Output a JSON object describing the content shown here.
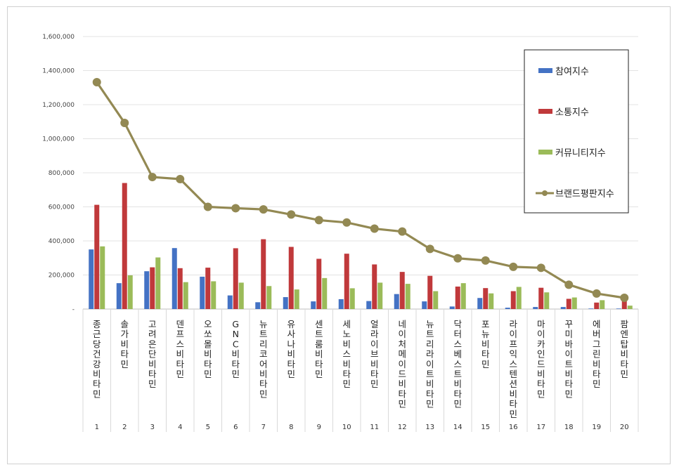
{
  "chart_data": {
    "type": "bar",
    "categories": [
      "종근당건강 비타민",
      "솔가 비타민",
      "고려은단 비타민",
      "덴프스 비타민",
      "오쏘몰 비타민",
      "GNC 비타민",
      "뉴트리코어 비타민",
      "유사나 비타민",
      "센트룸 비타민",
      "세노비스 비타민",
      "얼라이브 비타민",
      "네이처메이드 비타민",
      "뉴트리라이트 비타민",
      "닥터스베스트 비타민",
      "포뉴 비타민",
      "라이프익스텐션 비타민",
      "마이카인드 비타민",
      "꾸미바이트 비타민",
      "에버그린 비타민",
      "팜엔탑 비타민"
    ],
    "index_labels": [
      "1",
      "2",
      "3",
      "4",
      "5",
      "6",
      "7",
      "8",
      "9",
      "10",
      "11",
      "12",
      "13",
      "14",
      "15",
      "16",
      "17",
      "18",
      "19",
      "20"
    ],
    "series": [
      {
        "name": "참여지수",
        "kind": "bar",
        "color": "#4472c4",
        "values": [
          350000,
          152000,
          222000,
          358000,
          190000,
          80000,
          40000,
          70000,
          45000,
          58000,
          47000,
          88000,
          45000,
          15000,
          65000,
          8000,
          12000,
          12000,
          3000,
          3000
        ]
      },
      {
        "name": "소통지수",
        "kind": "bar",
        "color": "#c0393b",
        "values": [
          612000,
          740000,
          245000,
          240000,
          243000,
          357000,
          410000,
          365000,
          295000,
          325000,
          262000,
          218000,
          195000,
          132000,
          123000,
          105000,
          125000,
          60000,
          38000,
          50000
        ]
      },
      {
        "name": "커뮤니티지수",
        "kind": "bar",
        "color": "#9bbb59",
        "values": [
          368000,
          198000,
          303000,
          158000,
          163000,
          155000,
          135000,
          115000,
          182000,
          122000,
          155000,
          148000,
          105000,
          152000,
          92000,
          130000,
          98000,
          68000,
          52000,
          20000
        ]
      },
      {
        "name": "브랜드평판지수",
        "kind": "line",
        "color": "#938953",
        "values": [
          1332000,
          1093000,
          775000,
          763000,
          600000,
          592000,
          585000,
          555000,
          522000,
          508000,
          472000,
          455000,
          353000,
          298000,
          285000,
          248000,
          242000,
          143000,
          91000,
          66000
        ]
      }
    ],
    "y_ticks": [
      "-",
      "200,000",
      "400,000",
      "600,000",
      "800,000",
      "1,000,000",
      "1,200,000",
      "1,400,000",
      "1,600,000"
    ],
    "ylim": [
      0,
      1600000
    ],
    "grid": true,
    "legend_position": "top-right"
  }
}
